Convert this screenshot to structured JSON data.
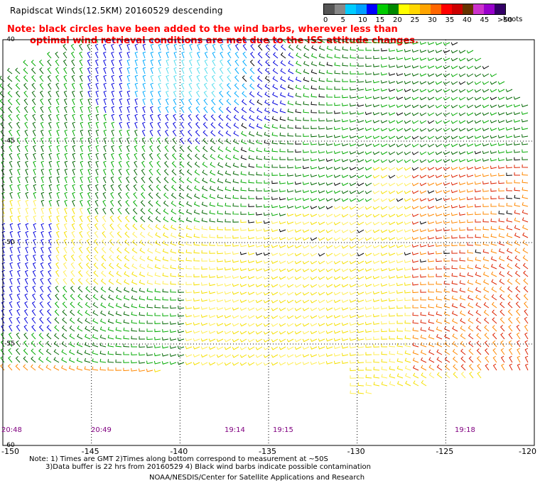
{
  "title": "Rapidscat Winds(12.5KM) 20160529 descending",
  "note": {
    "line1": "Note: black circles have been added to the wind barbs, wherever less than",
    "line2": "optimal wind retrieval conditions are met due to the ISS attitude changes."
  },
  "legend": {
    "labels": [
      "0",
      "5",
      "10",
      "15",
      "20",
      "25",
      "30",
      "35",
      "40",
      "45",
      ">50"
    ],
    "units": "knots",
    "colors": [
      "#555555",
      "#888888",
      "#00ccff",
      "#00a0ff",
      "#0000ff",
      "#00cc00",
      "#008800",
      "#ffff00",
      "#ffd700",
      "#ffa500",
      "#ff6600",
      "#ff0000",
      "#cc0000",
      "#663300",
      "#cc33cc",
      "#9900cc",
      "#330066"
    ]
  },
  "map": {
    "lat_labels": [
      "-40",
      "-45",
      "-50",
      "-55",
      "-60"
    ],
    "lon_labels": [
      "-150",
      "-145",
      "-140",
      "-135",
      "-130",
      "-125",
      "-120"
    ],
    "time_labels": [
      "20:48",
      "20:49",
      "19:14",
      "19:15",
      "19:18"
    ],
    "wind_colors": {
      "yellow": "#f5e000",
      "light_yellow": "#ffee55",
      "green": "#00aa00",
      "dark_green": "#006600",
      "blue": "#0000dd",
      "light_blue": "#00aaff",
      "cyan": "#55ddee",
      "orange": "#ff8800",
      "red": "#dd2200",
      "black": "#000000"
    }
  },
  "footnote": {
    "line1": "Note: 1) Times are GMT 2)Times along bottom correspond to measurement at ~50S",
    "line2": "3)Data buffer is 22 hrs from 20160529 4) Black wind barbs indicate possible contamination"
  },
  "credit": "NOAA/NESDIS/Center for Satellite Applications and Research"
}
